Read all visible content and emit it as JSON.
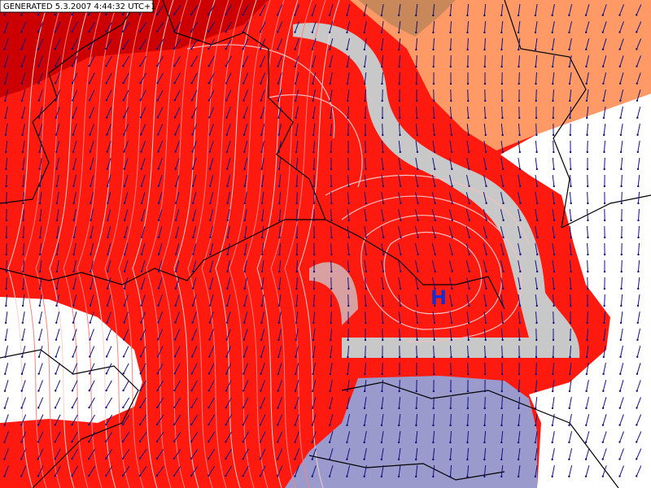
{
  "header": {
    "timestamp": "GENERATED 5.3.2007 4:44:32 UTC+1"
  },
  "map": {
    "pressure_center": "H"
  }
}
